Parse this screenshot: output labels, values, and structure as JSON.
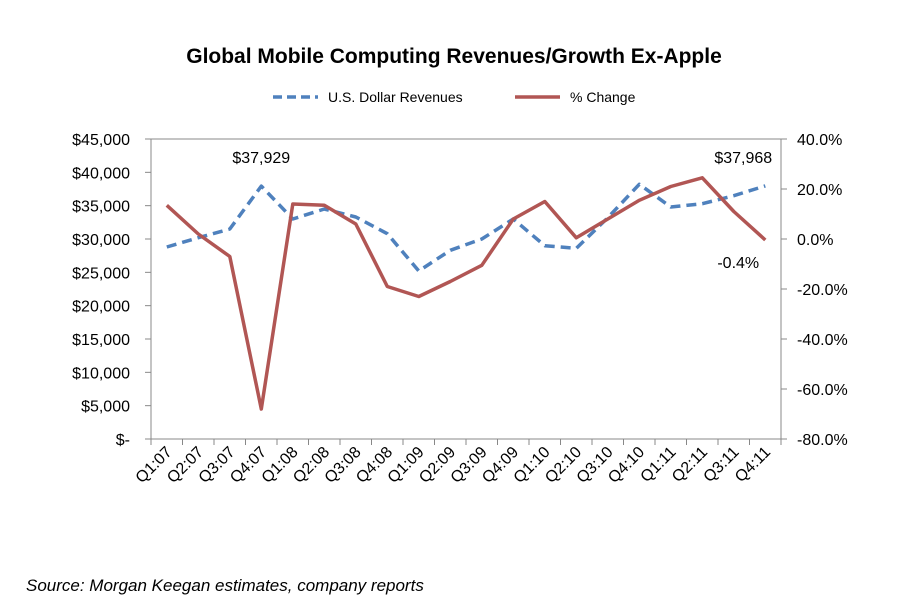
{
  "chart_data": {
    "type": "line",
    "title": "Global Mobile Computing Revenues/Growth Ex-Apple",
    "categories": [
      "Q1:07",
      "Q2:07",
      "Q3:07",
      "Q4:07",
      "Q1:08",
      "Q2:08",
      "Q3:08",
      "Q4:08",
      "Q1:09",
      "Q2:09",
      "Q3:09",
      "Q4:09",
      "Q1:10",
      "Q2:10",
      "Q3:10",
      "Q4:10",
      "Q1:11",
      "Q2:11",
      "Q3:11",
      "Q4:11"
    ],
    "y_left": {
      "ylim": [
        0,
        45000
      ],
      "ticks": [
        0,
        5000,
        10000,
        15000,
        20000,
        25000,
        30000,
        35000,
        40000,
        45000
      ],
      "tick_labels": [
        "$-",
        "$5,000",
        "$10,000",
        "$15,000",
        "$20,000",
        "$25,000",
        "$30,000",
        "$35,000",
        "$40,000",
        "$45,000"
      ]
    },
    "y_right": {
      "ylim": [
        -80,
        40
      ],
      "ticks": [
        -80,
        -60,
        -40,
        -20,
        0,
        20,
        40
      ],
      "tick_labels": [
        "-80.0%",
        "-60.0%",
        "-40.0%",
        "-20.0%",
        "0.0%",
        "20.0%",
        "40.0%"
      ]
    },
    "series": [
      {
        "name": "U.S. Dollar Revenues",
        "axis": "left",
        "style": "dashed",
        "color": "#4f81bd",
        "values": [
          28800,
          30200,
          31500,
          37929,
          33000,
          34500,
          33300,
          30800,
          25200,
          28300,
          30000,
          33000,
          29000,
          28600,
          33200,
          38200,
          34800,
          35300,
          36500,
          37968
        ]
      },
      {
        "name": "% Change",
        "axis": "right",
        "style": "solid",
        "color": "#b15654",
        "values": [
          13.5,
          2,
          -7,
          -68,
          14,
          13.5,
          6,
          -19,
          -23,
          -17,
          -10.5,
          8,
          15,
          0.5,
          8,
          15.5,
          21,
          24.5,
          11,
          -0.4
        ]
      }
    ],
    "annotations": [
      {
        "text": "$37,929",
        "category": "Q4:07",
        "series": "U.S. Dollar Revenues"
      },
      {
        "text": "$37,968",
        "category": "Q4:11",
        "series": "U.S. Dollar Revenues"
      },
      {
        "text": "-0.4%",
        "category": "Q4:11",
        "series": "% Change"
      }
    ],
    "legend_position": "top-center",
    "grid": false
  },
  "source": "Source:  Morgan Keegan estimates, company reports"
}
